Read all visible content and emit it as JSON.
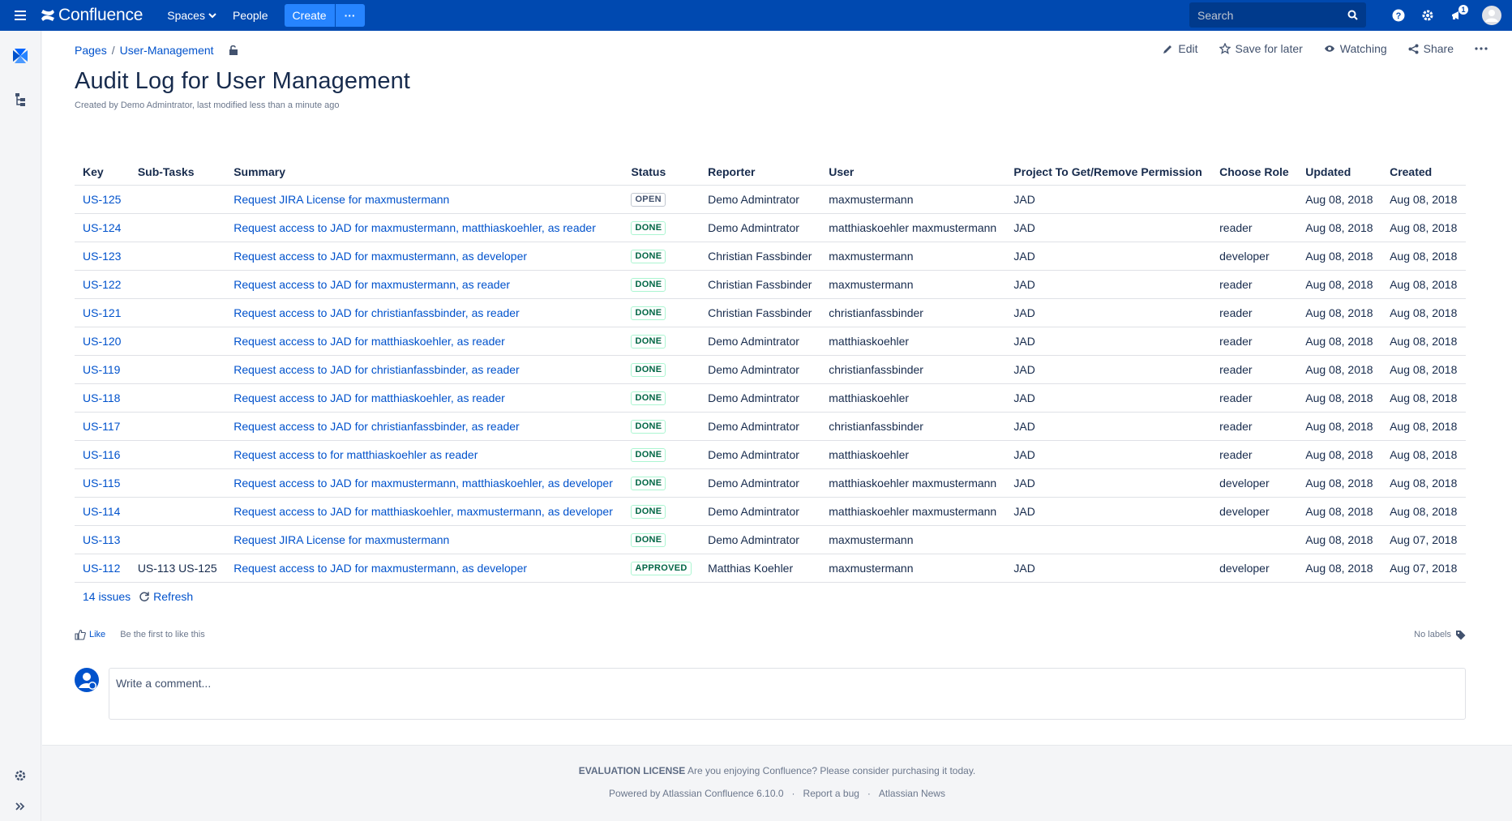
{
  "topnav": {
    "logo": "Confluence",
    "spaces": "Spaces",
    "people": "People",
    "create": "Create",
    "search_placeholder": "Search",
    "notification_count": "1"
  },
  "breadcrumb": {
    "pages": "Pages",
    "space": "User-Management"
  },
  "actions": {
    "edit": "Edit",
    "save": "Save for later",
    "watching": "Watching",
    "share": "Share"
  },
  "page": {
    "title": "Audit Log for User Management",
    "meta": "Created by Demo Admintrator, last modified less than a minute ago"
  },
  "table": {
    "headers": [
      "Key",
      "Sub-Tasks",
      "Summary",
      "Status",
      "Reporter",
      "User",
      "Project To Get/Remove Permission",
      "Choose Role",
      "Updated",
      "Created"
    ],
    "rows": [
      {
        "key": "US-125",
        "subtasks": "",
        "summary": "Request JIRA License for maxmustermann",
        "status": "OPEN",
        "reporter": "Demo Admintrator",
        "user": "maxmustermann",
        "project": "JAD",
        "role": "",
        "updated": "Aug 08, 2018",
        "created": "Aug 08, 2018"
      },
      {
        "key": "US-124",
        "subtasks": "",
        "summary": "Request access to JAD for maxmustermann, matthiaskoehler, as reader",
        "status": "DONE",
        "reporter": "Demo Admintrator",
        "user": "matthiaskoehler maxmustermann",
        "project": "JAD",
        "role": "reader",
        "updated": "Aug 08, 2018",
        "created": "Aug 08, 2018"
      },
      {
        "key": "US-123",
        "subtasks": "",
        "summary": "Request access to JAD for maxmustermann, as developer",
        "status": "DONE",
        "reporter": "Christian Fassbinder",
        "user": "maxmustermann",
        "project": "JAD",
        "role": "developer",
        "updated": "Aug 08, 2018",
        "created": "Aug 08, 2018"
      },
      {
        "key": "US-122",
        "subtasks": "",
        "summary": "Request access to JAD for maxmustermann, as reader",
        "status": "DONE",
        "reporter": "Christian Fassbinder",
        "user": "maxmustermann",
        "project": "JAD",
        "role": "reader",
        "updated": "Aug 08, 2018",
        "created": "Aug 08, 2018"
      },
      {
        "key": "US-121",
        "subtasks": "",
        "summary": "Request access to JAD for christianfassbinder, as reader",
        "status": "DONE",
        "reporter": "Christian Fassbinder",
        "user": "christianfassbinder",
        "project": "JAD",
        "role": "reader",
        "updated": "Aug 08, 2018",
        "created": "Aug 08, 2018"
      },
      {
        "key": "US-120",
        "subtasks": "",
        "summary": "Request access to JAD for matthiaskoehler, as reader",
        "status": "DONE",
        "reporter": "Demo Admintrator",
        "user": "matthiaskoehler",
        "project": "JAD",
        "role": "reader",
        "updated": "Aug 08, 2018",
        "created": "Aug 08, 2018"
      },
      {
        "key": "US-119",
        "subtasks": "",
        "summary": "Request access to JAD for christianfassbinder, as reader",
        "status": "DONE",
        "reporter": "Demo Admintrator",
        "user": "christianfassbinder",
        "project": "JAD",
        "role": "reader",
        "updated": "Aug 08, 2018",
        "created": "Aug 08, 2018"
      },
      {
        "key": "US-118",
        "subtasks": "",
        "summary": "Request access to JAD for matthiaskoehler, as reader",
        "status": "DONE",
        "reporter": "Demo Admintrator",
        "user": "matthiaskoehler",
        "project": "JAD",
        "role": "reader",
        "updated": "Aug 08, 2018",
        "created": "Aug 08, 2018"
      },
      {
        "key": "US-117",
        "subtasks": "",
        "summary": "Request access to JAD for christianfassbinder, as reader",
        "status": "DONE",
        "reporter": "Demo Admintrator",
        "user": "christianfassbinder",
        "project": "JAD",
        "role": "reader",
        "updated": "Aug 08, 2018",
        "created": "Aug 08, 2018"
      },
      {
        "key": "US-116",
        "subtasks": "",
        "summary": "Request access to for matthiaskoehler as reader",
        "status": "DONE",
        "reporter": "Demo Admintrator",
        "user": "matthiaskoehler",
        "project": "JAD",
        "role": "reader",
        "updated": "Aug 08, 2018",
        "created": "Aug 08, 2018"
      },
      {
        "key": "US-115",
        "subtasks": "",
        "summary": "Request access to JAD for maxmustermann, matthiaskoehler, as developer",
        "status": "DONE",
        "reporter": "Demo Admintrator",
        "user": "matthiaskoehler maxmustermann",
        "project": "JAD",
        "role": "developer",
        "updated": "Aug 08, 2018",
        "created": "Aug 08, 2018"
      },
      {
        "key": "US-114",
        "subtasks": "",
        "summary": "Request access to JAD for matthiaskoehler, maxmustermann, as developer",
        "status": "DONE",
        "reporter": "Demo Admintrator",
        "user": "matthiaskoehler maxmustermann",
        "project": "JAD",
        "role": "developer",
        "updated": "Aug 08, 2018",
        "created": "Aug 08, 2018"
      },
      {
        "key": "US-113",
        "subtasks": "",
        "summary": "Request JIRA License for maxmustermann",
        "status": "DONE",
        "reporter": "Demo Admintrator",
        "user": "maxmustermann",
        "project": "",
        "role": "",
        "updated": "Aug 08, 2018",
        "created": "Aug 07, 2018"
      },
      {
        "key": "US-112",
        "subtasks": "US-113 US-125",
        "summary": "Request access to JAD for maxmustermann, as developer",
        "status": "APPROVED",
        "reporter": "Matthias Koehler",
        "user": "maxmustermann",
        "project": "JAD",
        "role": "developer",
        "updated": "Aug 08, 2018",
        "created": "Aug 07, 2018"
      }
    ]
  },
  "table_footer": {
    "issues": "14 issues",
    "refresh": "Refresh"
  },
  "likes": {
    "like": "Like",
    "first": "Be the first to like this",
    "no_labels": "No labels"
  },
  "comment": {
    "placeholder": "Write a comment..."
  },
  "footer": {
    "license_bold": "EVALUATION LICENSE",
    "license_text": "Are you enjoying Confluence? Please consider purchasing it today.",
    "powered": "Powered by Atlassian Confluence 6.10.0",
    "report": "Report a bug",
    "news": "Atlassian News"
  }
}
